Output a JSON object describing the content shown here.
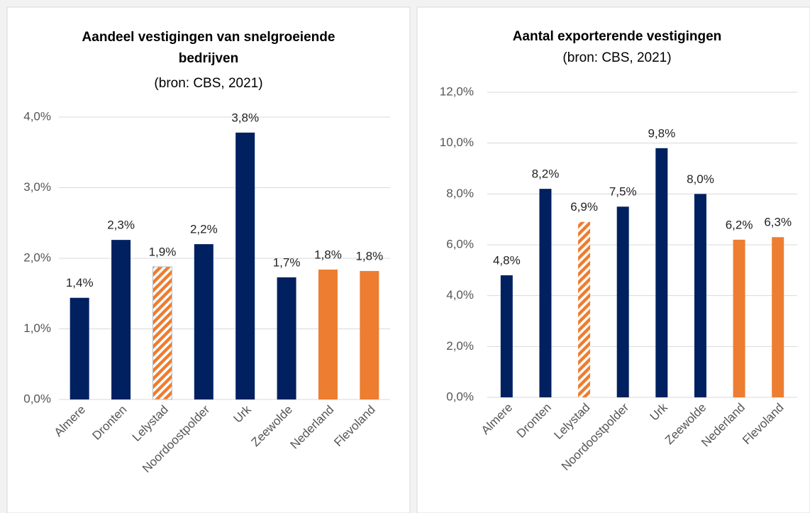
{
  "chart_data": [
    {
      "type": "bar",
      "title": [
        "Aandeel vestigingen van snelgroeiende",
        "bedrijven"
      ],
      "subtitle": "(bron: CBS, 2021)",
      "categories": [
        "Almere",
        "Dronten",
        "Lelystad",
        "Noordoostpolder",
        "Urk",
        "Zeewolde",
        "Nederland",
        "Flevoland"
      ],
      "values": [
        1.44,
        2.26,
        1.88,
        2.2,
        3.78,
        1.73,
        1.84,
        1.82
      ],
      "value_labels": [
        "1,4%",
        "2,3%",
        "1,9%",
        "2,2%",
        "3,8%",
        "1,7%",
        "1,8%",
        "1,8%"
      ],
      "colors": [
        "#002060",
        "#002060",
        "#ED7D31",
        "#002060",
        "#002060",
        "#002060",
        "#ED7D31",
        "#ED7D31"
      ],
      "bar_styles": [
        "solid",
        "solid",
        "hatched",
        "solid",
        "solid",
        "solid",
        "solid",
        "solid"
      ],
      "ylim": [
        0,
        4
      ],
      "yticks": [
        {
          "value": 0,
          "label": "0,0%"
        },
        {
          "value": 1,
          "label": "1,0%"
        },
        {
          "value": 2,
          "label": "2,0%"
        },
        {
          "value": 3,
          "label": "3,0%"
        },
        {
          "value": 4,
          "label": "4,0%"
        }
      ],
      "grid": true
    },
    {
      "type": "bar",
      "title": [
        "Aantal exporterende vestigingen"
      ],
      "subtitle": "(bron: CBS, 2021)",
      "categories": [
        "Almere",
        "Dronten",
        "Lelystad",
        "Noordoostpolder",
        "Urk",
        "Zeewolde",
        "Nederland",
        "Flevoland"
      ],
      "values": [
        4.8,
        8.2,
        6.9,
        7.5,
        9.8,
        8.0,
        6.2,
        6.3
      ],
      "value_labels": [
        "4,8%",
        "8,2%",
        "6,9%",
        "7,5%",
        "9,8%",
        "8,0%",
        "6,2%",
        "6,3%"
      ],
      "colors": [
        "#002060",
        "#002060",
        "#ED7D31",
        "#002060",
        "#002060",
        "#002060",
        "#ED7D31",
        "#ED7D31"
      ],
      "bar_styles": [
        "solid",
        "solid",
        "hatched",
        "solid",
        "solid",
        "solid",
        "solid",
        "solid"
      ],
      "ylim": [
        0,
        12
      ],
      "yticks": [
        {
          "value": 0,
          "label": "0,0%"
        },
        {
          "value": 2,
          "label": "2,0%"
        },
        {
          "value": 4,
          "label": "4,0%"
        },
        {
          "value": 6,
          "label": "6,0%"
        },
        {
          "value": 8,
          "label": "8,0%"
        },
        {
          "value": 10,
          "label": "10,0%"
        },
        {
          "value": 12,
          "label": "12,0%"
        }
      ],
      "grid": true
    }
  ]
}
